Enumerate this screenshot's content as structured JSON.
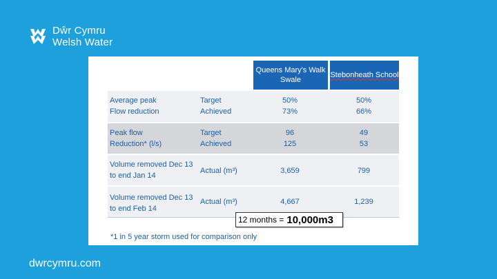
{
  "brand": {
    "name_line1": "Dŵr Cymru",
    "name_line2": "Welsh Water",
    "logo_icon": "dragon-logo-icon",
    "bg_color": "#1ea0dc"
  },
  "footer": {
    "url": "dwrcymru.com"
  },
  "table": {
    "col_headers": [
      "Queens Mary's Walk Swale",
      "Stebonheath School"
    ],
    "rows": [
      {
        "metric_line1": "Average peak",
        "metric_line2": "Flow reduction",
        "measure_line1": "Target",
        "measure_line2": "Achieved",
        "a_line1": "50%",
        "a_line2": "73%",
        "b_line1": "50%",
        "b_line2": "66%"
      },
      {
        "metric_line1": "Peak flow",
        "metric_line2": "Reduction* (l/s)",
        "measure_line1": "Target",
        "measure_line2": "Achieved",
        "a_line1": "96",
        "a_line2": "125",
        "b_line1": "49",
        "b_line2": "53"
      },
      {
        "metric_line1": "Volume removed Dec  13",
        "metric_line2": "to end Jan 14",
        "measure": "Actual (m³)",
        "a": "3,659",
        "b": "799"
      },
      {
        "metric_line1": "Volume removed Dec  13",
        "metric_line2": "to end Feb 14",
        "measure": "Actual (m³)",
        "a": "4,667",
        "b": "1,239"
      }
    ],
    "text_color": "#1f5ea8",
    "header_color": "#1a66b5"
  },
  "callout": {
    "prefix": "12 months = ",
    "value": "10,000m3"
  },
  "footnote": "*1 in 5 year storm used for comparison only"
}
